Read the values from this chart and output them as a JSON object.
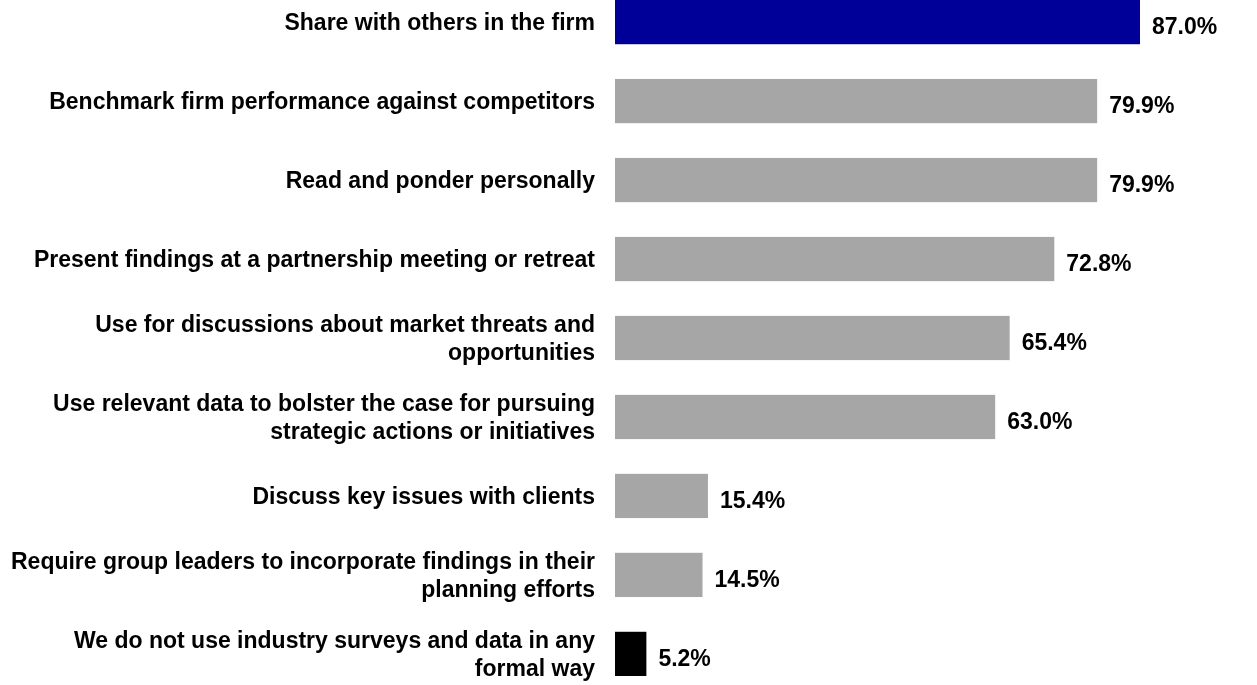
{
  "chart_data": {
    "type": "bar",
    "orientation": "horizontal",
    "categories": [
      "Share with others in the firm",
      "Benchmark firm performance against competitors",
      "Read and ponder personally",
      "Present findings at a partnership meeting or retreat",
      "Use for discussions about market threats and opportunities",
      "Use relevant data to bolster the case for pursuing strategic actions or initiatives",
      "Discuss key issues with clients",
      "Require group leaders to incorporate findings in their planning efforts",
      "We do not use industry surveys and data in any formal way"
    ],
    "values": [
      87.0,
      79.9,
      79.9,
      72.8,
      65.4,
      63.0,
      15.4,
      14.5,
      5.2
    ],
    "value_labels": [
      "87.0%",
      "79.9%",
      "79.9%",
      "72.8%",
      "65.4%",
      "63.0%",
      "15.4%",
      "14.5%",
      "5.2%"
    ],
    "colors": [
      "#000099",
      "#a6a6a6",
      "#a6a6a6",
      "#a6a6a6",
      "#a6a6a6",
      "#a6a6a6",
      "#a6a6a6",
      "#a6a6a6",
      "#000000"
    ],
    "tick_labels": "y"
  }
}
